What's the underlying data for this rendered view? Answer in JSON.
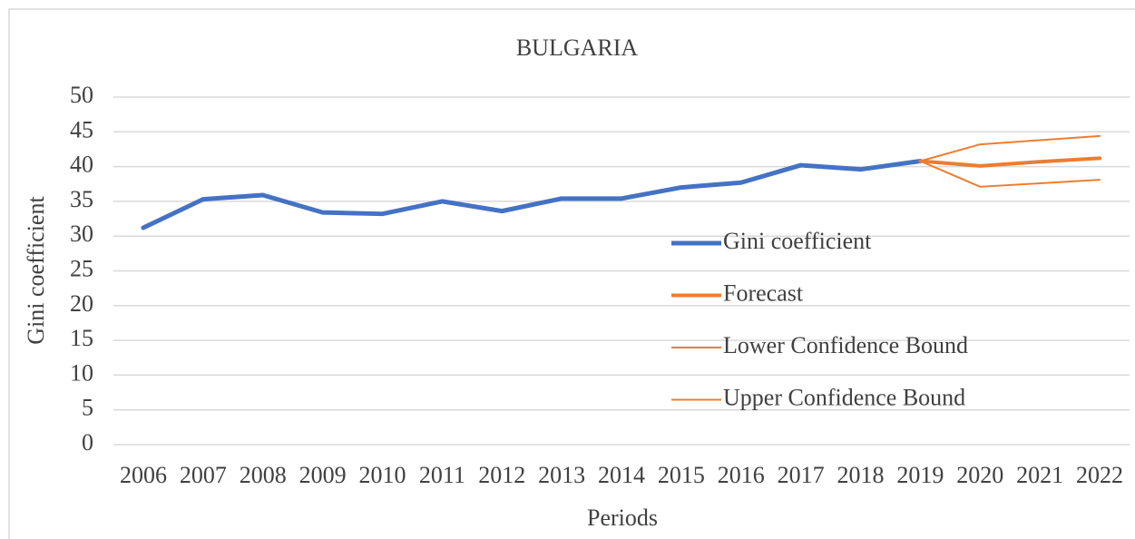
{
  "chart_data": {
    "type": "line",
    "title": "BULGARIA",
    "x_label": "Periods",
    "y_label": "Gini coefficient",
    "categories": [
      "2006",
      "2007",
      "2008",
      "2009",
      "2010",
      "2011",
      "2012",
      "2013",
      "2014",
      "2015",
      "2016",
      "2017",
      "2018",
      "2019",
      "2020",
      "2021",
      "2022"
    ],
    "series": [
      {
        "name": "Gini coefficient",
        "color": "#4472c4",
        "width": 5,
        "values": [
          31.2,
          35.3,
          35.9,
          33.4,
          33.2,
          35.0,
          33.6,
          35.4,
          35.4,
          37.0,
          37.7,
          40.2,
          39.6,
          40.8,
          null,
          null,
          null
        ]
      },
      {
        "name": "Forecast",
        "color": "#ed7d31",
        "width": 4,
        "values": [
          null,
          null,
          null,
          null,
          null,
          null,
          null,
          null,
          null,
          null,
          null,
          null,
          null,
          40.8,
          40.1,
          40.7,
          41.2
        ]
      },
      {
        "name": "Lower Confidence Bound",
        "color": "#ed7d31",
        "width": 2,
        "values": [
          null,
          null,
          null,
          null,
          null,
          null,
          null,
          null,
          null,
          null,
          null,
          null,
          null,
          40.8,
          37.1,
          37.6,
          38.1
        ]
      },
      {
        "name": "Upper Confidence Bound",
        "color": "#ed7d31",
        "width": 2,
        "values": [
          null,
          null,
          null,
          null,
          null,
          null,
          null,
          null,
          null,
          null,
          null,
          null,
          null,
          40.8,
          43.2,
          43.8,
          44.4
        ]
      }
    ],
    "ylim": [
      0,
      50
    ],
    "yticks": [
      0,
      5,
      10,
      15,
      20,
      25,
      30,
      35,
      40,
      45,
      50
    ],
    "grid": true,
    "legend": "right"
  }
}
